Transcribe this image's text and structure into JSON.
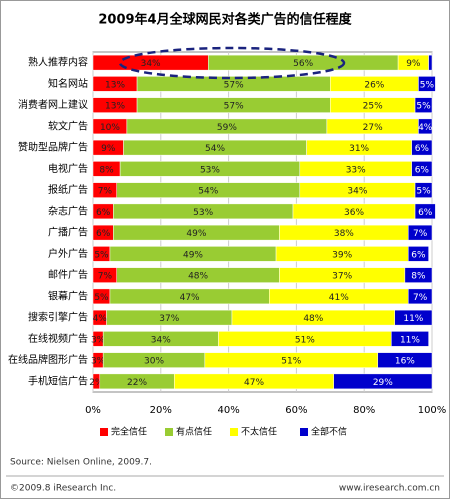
{
  "chart_data": {
    "type": "stacked-bar-horizontal",
    "title": "2009年4月全球网民对各类广告的信任程度",
    "categories": [
      "熟人推荐内容",
      "知名网站",
      "消费者网上建议",
      "软文广告",
      "赞助型品牌广告",
      "电视广告",
      "报纸广告",
      "杂志广告",
      "广播广告",
      "户外广告",
      "邮件广告",
      "银幕广告",
      "搜索引擎广告",
      "在线视频广告",
      "在线品牌图形广告",
      "手机短信广告"
    ],
    "series": [
      {
        "name": "完全信任",
        "color": "#ff0000",
        "values": [
          34,
          13,
          13,
          10,
          9,
          8,
          7,
          6,
          6,
          5,
          7,
          5,
          4,
          3,
          3,
          2
        ],
        "value_labels": [
          "34%",
          "13%",
          "13%",
          "10%",
          "9%",
          "8%",
          "7%",
          "6%",
          "6%",
          "5%",
          "7%",
          "5%",
          "4%",
          "3%",
          "3%",
          "2%"
        ]
      },
      {
        "name": "有点信任",
        "color": "#99cc33",
        "values": [
          56,
          57,
          57,
          59,
          54,
          53,
          54,
          53,
          49,
          49,
          48,
          47,
          37,
          34,
          30,
          22
        ],
        "value_labels": [
          "56%",
          "57%",
          "57%",
          "59%",
          "54%",
          "53%",
          "54%",
          "53%",
          "49%",
          "49%",
          "48%",
          "47%",
          "37%",
          "34%",
          "30%",
          "22%"
        ]
      },
      {
        "name": "不太信任",
        "color": "#ffff00",
        "values": [
          9,
          26,
          25,
          27,
          31,
          33,
          34,
          36,
          38,
          39,
          37,
          41,
          48,
          51,
          51,
          47
        ],
        "value_labels": [
          "9%",
          "26%",
          "25%",
          "27%",
          "31%",
          "33%",
          "34%",
          "36%",
          "38%",
          "39%",
          "37%",
          "41%",
          "48%",
          "51%",
          "51%",
          "47%"
        ]
      },
      {
        "name": "全部不信",
        "color": "#0000cc",
        "values": [
          1,
          5,
          5,
          4,
          6,
          6,
          5,
          6,
          7,
          6,
          8,
          7,
          11,
          11,
          16,
          29
        ],
        "value_labels": [
          null,
          "5%",
          "5%",
          "4%",
          "6%",
          "6%",
          "5%",
          "6%",
          "7%",
          "6%",
          "8%",
          "7%",
          "11%",
          "11%",
          "16%",
          "29%"
        ]
      }
    ],
    "xlim": [
      0,
      100
    ],
    "xticks": [
      {
        "value": 0,
        "label": "0%"
      },
      {
        "value": 20,
        "label": "20%"
      },
      {
        "value": 40,
        "label": "40%"
      },
      {
        "value": 60,
        "label": "60%"
      },
      {
        "value": 80,
        "label": "80%"
      },
      {
        "value": 100,
        "label": "100%"
      }
    ],
    "grid": true,
    "source": "Source: Nielsen Online, 2009.7.",
    "copyright": "©2009.8 iResearch Inc.",
    "website": "www.iresearch.com.cn"
  }
}
